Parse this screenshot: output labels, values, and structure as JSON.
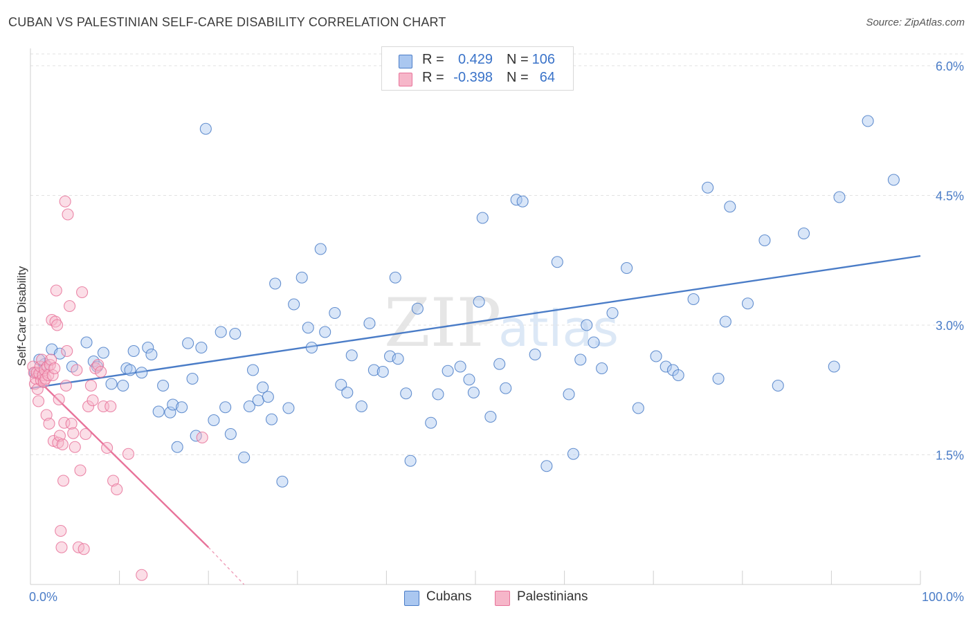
{
  "header": {
    "title": "CUBAN VS PALESTINIAN SELF-CARE DISABILITY CORRELATION CHART",
    "source": "Source: ZipAtlas.com"
  },
  "watermark": {
    "zip": "ZIP",
    "atlas": "atlas"
  },
  "legend": {
    "rows": [
      {
        "r_label": "R =",
        "r_value": "0.429",
        "n_label": "N =",
        "n_value": "106",
        "color": "#aac7f0"
      },
      {
        "r_label": "R =",
        "r_value": "-0.398",
        "n_label": "N =",
        "n_value": "64",
        "color": "#f6b6c9"
      }
    ]
  },
  "bottom_legend": {
    "items": [
      {
        "label": "Cubans",
        "color": "#aac7f0"
      },
      {
        "label": "Palestinians",
        "color": "#f6b6c9"
      }
    ]
  },
  "chart_data": {
    "type": "scatter",
    "title": "CUBAN VS PALESTINIAN SELF-CARE DISABILITY CORRELATION CHART",
    "ylabel": "Self-Care Disability",
    "xlabel": "",
    "xlim": [
      0,
      100
    ],
    "ylim": [
      0,
      6.2
    ],
    "x_tick_labels": [
      "0.0%",
      "100.0%"
    ],
    "y_ticks": [
      1.5,
      3.0,
      4.5,
      6.0
    ],
    "y_tick_labels": [
      "1.5%",
      "3.0%",
      "4.5%",
      "6.0%"
    ],
    "grid": "horizontal dashed",
    "legend_placement": "top-center",
    "series": [
      {
        "name": "Cubans",
        "color": "#4a7cc7",
        "fill": "#aac7f0",
        "trend": {
          "x": [
            0,
            100
          ],
          "y": [
            2.27,
            3.8
          ]
        },
        "points": [
          [
            1.6,
            2.55
          ],
          [
            2.4,
            2.72
          ],
          [
            3.3,
            2.67
          ],
          [
            4.7,
            2.52
          ],
          [
            6.3,
            2.8
          ],
          [
            7.1,
            2.58
          ],
          [
            7.5,
            2.52
          ],
          [
            8.2,
            2.68
          ],
          [
            9.1,
            2.32
          ],
          [
            10.4,
            2.3
          ],
          [
            10.8,
            2.5
          ],
          [
            11.2,
            2.48
          ],
          [
            11.6,
            2.7
          ],
          [
            12.5,
            2.45
          ],
          [
            13.2,
            2.74
          ],
          [
            13.6,
            2.66
          ],
          [
            14.4,
            2.0
          ],
          [
            14.9,
            2.3
          ],
          [
            15.7,
            1.99
          ],
          [
            16.0,
            2.08
          ],
          [
            16.5,
            1.59
          ],
          [
            17.0,
            2.05
          ],
          [
            17.7,
            2.79
          ],
          [
            18.2,
            2.38
          ],
          [
            18.6,
            1.72
          ],
          [
            19.2,
            2.74
          ],
          [
            19.7,
            5.27
          ],
          [
            20.6,
            1.9
          ],
          [
            21.4,
            2.92
          ],
          [
            21.9,
            2.05
          ],
          [
            22.5,
            1.74
          ],
          [
            23.0,
            2.9
          ],
          [
            24.0,
            1.47
          ],
          [
            24.6,
            2.06
          ],
          [
            25.0,
            2.48
          ],
          [
            25.6,
            2.13
          ],
          [
            26.1,
            2.28
          ],
          [
            26.7,
            2.17
          ],
          [
            27.1,
            1.91
          ],
          [
            27.5,
            3.48
          ],
          [
            28.3,
            1.19
          ],
          [
            29.0,
            2.04
          ],
          [
            29.6,
            3.24
          ],
          [
            30.5,
            3.55
          ],
          [
            31.2,
            2.97
          ],
          [
            31.6,
            2.74
          ],
          [
            32.6,
            3.88
          ],
          [
            33.1,
            2.92
          ],
          [
            34.2,
            3.14
          ],
          [
            34.9,
            2.31
          ],
          [
            35.6,
            2.22
          ],
          [
            36.1,
            2.65
          ],
          [
            37.2,
            2.06
          ],
          [
            38.1,
            3.02
          ],
          [
            38.6,
            2.48
          ],
          [
            39.6,
            2.46
          ],
          [
            40.4,
            2.64
          ],
          [
            41.0,
            3.55
          ],
          [
            41.3,
            2.61
          ],
          [
            42.2,
            2.21
          ],
          [
            42.7,
            1.43
          ],
          [
            43.5,
            3.19
          ],
          [
            45.0,
            1.87
          ],
          [
            45.8,
            2.2
          ],
          [
            46.9,
            2.47
          ],
          [
            48.3,
            2.52
          ],
          [
            49.3,
            2.37
          ],
          [
            49.8,
            2.22
          ],
          [
            50.4,
            3.27
          ],
          [
            50.8,
            4.24
          ],
          [
            51.7,
            1.94
          ],
          [
            52.7,
            2.55
          ],
          [
            53.4,
            2.27
          ],
          [
            54.6,
            4.45
          ],
          [
            55.3,
            4.43
          ],
          [
            56.7,
            2.66
          ],
          [
            58.0,
            1.37
          ],
          [
            59.2,
            3.73
          ],
          [
            60.5,
            2.2
          ],
          [
            61.0,
            1.51
          ],
          [
            61.8,
            2.6
          ],
          [
            62.5,
            3.0
          ],
          [
            63.3,
            2.8
          ],
          [
            64.2,
            2.5
          ],
          [
            65.4,
            3.14
          ],
          [
            67.0,
            3.66
          ],
          [
            68.3,
            2.04
          ],
          [
            70.3,
            2.64
          ],
          [
            71.4,
            2.52
          ],
          [
            72.2,
            2.48
          ],
          [
            72.8,
            2.42
          ],
          [
            74.5,
            3.3
          ],
          [
            76.1,
            4.59
          ],
          [
            77.3,
            2.38
          ],
          [
            78.1,
            3.04
          ],
          [
            78.6,
            4.37
          ],
          [
            80.6,
            3.25
          ],
          [
            82.5,
            3.98
          ],
          [
            84.0,
            2.3
          ],
          [
            86.9,
            4.06
          ],
          [
            90.3,
            2.52
          ],
          [
            90.9,
            4.48
          ],
          [
            94.1,
            5.36
          ],
          [
            97.0,
            4.68
          ],
          [
            0.5,
            2.45
          ],
          [
            1.0,
            2.6
          ]
        ]
      },
      {
        "name": "Palestinians",
        "color": "#e8739a",
        "fill": "#f6b6c9",
        "trend": {
          "x": [
            0,
            20
          ],
          "y": [
            2.45,
            0.43
          ]
        },
        "trend_dashed": {
          "x": [
            20,
            24
          ],
          "y": [
            0.43,
            0.0
          ]
        },
        "points": [
          [
            0.3,
            2.52
          ],
          [
            0.4,
            2.45
          ],
          [
            0.5,
            2.32
          ],
          [
            0.6,
            2.38
          ],
          [
            0.7,
            2.45
          ],
          [
            0.8,
            2.26
          ],
          [
            0.9,
            2.12
          ],
          [
            1.0,
            2.44
          ],
          [
            1.1,
            2.52
          ],
          [
            1.2,
            2.36
          ],
          [
            1.3,
            2.6
          ],
          [
            1.4,
            2.42
          ],
          [
            1.5,
            2.34
          ],
          [
            1.6,
            2.48
          ],
          [
            1.7,
            2.38
          ],
          [
            1.8,
            1.96
          ],
          [
            1.9,
            2.52
          ],
          [
            2.0,
            2.42
          ],
          [
            2.1,
            1.86
          ],
          [
            2.2,
            2.54
          ],
          [
            2.3,
            2.6
          ],
          [
            2.4,
            3.06
          ],
          [
            2.5,
            2.42
          ],
          [
            2.6,
            1.66
          ],
          [
            2.7,
            2.5
          ],
          [
            2.8,
            3.04
          ],
          [
            2.9,
            3.4
          ],
          [
            3.0,
            3.0
          ],
          [
            3.1,
            1.64
          ],
          [
            3.2,
            2.14
          ],
          [
            3.3,
            1.72
          ],
          [
            3.4,
            0.62
          ],
          [
            3.5,
            0.43
          ],
          [
            3.6,
            1.62
          ],
          [
            3.7,
            1.2
          ],
          [
            3.8,
            1.87
          ],
          [
            3.9,
            4.43
          ],
          [
            4.0,
            2.3
          ],
          [
            4.1,
            2.7
          ],
          [
            4.2,
            4.28
          ],
          [
            4.4,
            3.22
          ],
          [
            4.6,
            1.86
          ],
          [
            4.8,
            1.75
          ],
          [
            5.0,
            1.59
          ],
          [
            5.2,
            2.48
          ],
          [
            5.4,
            0.43
          ],
          [
            5.6,
            1.32
          ],
          [
            5.8,
            3.38
          ],
          [
            6.0,
            0.41
          ],
          [
            6.2,
            1.74
          ],
          [
            6.5,
            2.06
          ],
          [
            6.8,
            2.3
          ],
          [
            7.0,
            2.13
          ],
          [
            7.3,
            2.5
          ],
          [
            7.6,
            2.54
          ],
          [
            7.9,
            2.46
          ],
          [
            8.2,
            2.06
          ],
          [
            8.6,
            1.58
          ],
          [
            9.0,
            2.06
          ],
          [
            9.3,
            1.2
          ],
          [
            9.7,
            1.1
          ],
          [
            11.0,
            1.51
          ],
          [
            12.5,
            0.11
          ],
          [
            19.3,
            1.7
          ]
        ]
      }
    ]
  }
}
